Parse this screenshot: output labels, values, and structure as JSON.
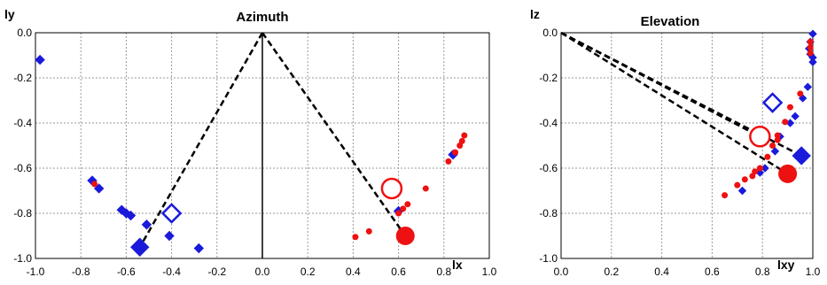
{
  "chart_data": [
    {
      "type": "scatter",
      "title": "Azimuth",
      "xlabel": "lx",
      "ylabel": "ly",
      "xlim": [
        -1.0,
        1.0
      ],
      "ylim": [
        -1.0,
        0.0
      ],
      "xticks": [
        "-1.0",
        "-0.8",
        "-0.6",
        "-0.4",
        "-0.2",
        "0.0",
        "0.2",
        "0.4",
        "0.6",
        "0.8",
        "1.0"
      ],
      "yticks": [
        "0.0",
        "-0.2",
        "-0.4",
        "-0.6",
        "-0.8",
        "-1.0"
      ],
      "grid": true,
      "colors": {
        "blue": "#1a1adb",
        "red": "#ee1111"
      },
      "lines": [
        [
          [
            0.0,
            0.0
          ],
          [
            -0.54,
            -0.95
          ]
        ],
        [
          [
            0.0,
            0.0
          ],
          [
            0.63,
            -0.9
          ]
        ]
      ],
      "series": [
        {
          "marker": "diamond",
          "color": "blue",
          "fill": "filled",
          "points": [
            [
              -0.98,
              -0.12,
              5
            ],
            [
              -0.75,
              -0.655,
              5
            ],
            [
              -0.72,
              -0.69,
              5
            ],
            [
              -0.62,
              -0.785,
              5
            ],
            [
              -0.6,
              -0.8,
              5
            ],
            [
              -0.58,
              -0.81,
              5
            ],
            [
              -0.51,
              -0.85,
              5
            ],
            [
              -0.41,
              -0.9,
              5
            ],
            [
              -0.28,
              -0.955,
              5
            ],
            [
              -0.54,
              -0.95,
              10
            ],
            [
              0.6,
              -0.79,
              5
            ],
            [
              0.84,
              -0.54,
              5
            ]
          ]
        },
        {
          "marker": "diamond",
          "color": "blue",
          "fill": "open",
          "points": [
            [
              -0.4,
              -0.8,
              10
            ]
          ]
        },
        {
          "marker": "circle",
          "color": "red",
          "fill": "filled",
          "points": [
            [
              -0.74,
              -0.67,
              3
            ],
            [
              0.41,
              -0.905,
              3
            ],
            [
              0.47,
              -0.88,
              3
            ],
            [
              0.6,
              -0.8,
              3
            ],
            [
              0.62,
              -0.78,
              3
            ],
            [
              0.64,
              -0.76,
              3
            ],
            [
              0.72,
              -0.69,
              3
            ],
            [
              0.82,
              -0.57,
              3
            ],
            [
              0.85,
              -0.53,
              3
            ],
            [
              0.87,
              -0.5,
              3
            ],
            [
              0.88,
              -0.48,
              3
            ],
            [
              0.89,
              -0.455,
              3
            ],
            [
              0.63,
              -0.9,
              10
            ]
          ]
        },
        {
          "marker": "circle",
          "color": "red",
          "fill": "open",
          "points": [
            [
              0.57,
              -0.69,
              11
            ]
          ]
        }
      ]
    },
    {
      "type": "scatter",
      "title": "Elevation",
      "xlabel": "lxy",
      "ylabel": "lz",
      "xlim": [
        0.0,
        1.0
      ],
      "ylim": [
        -1.0,
        0.0
      ],
      "xticks": [
        "0.0",
        "0.2",
        "0.4",
        "0.6",
        "0.8",
        "1.0"
      ],
      "yticks": [
        "0.0",
        "-0.2",
        "-0.4",
        "-0.6",
        "-0.8",
        "-1.0"
      ],
      "grid": true,
      "colors": {
        "blue": "#1a1adb",
        "red": "#ee1111"
      },
      "lines": [
        [
          [
            0.0,
            0.0
          ],
          [
            0.955,
            -0.545
          ]
        ],
        [
          [
            0.0,
            0.0
          ],
          [
            0.9,
            -0.625
          ]
        ],
        [
          [
            0.0,
            0.0
          ],
          [
            0.79,
            -0.46
          ]
        ]
      ],
      "series": [
        {
          "marker": "diamond",
          "color": "blue",
          "fill": "filled",
          "points": [
            [
              1.0,
              -0.005,
              4
            ],
            [
              0.99,
              -0.04,
              4
            ],
            [
              0.985,
              -0.07,
              4
            ],
            [
              0.99,
              -0.095,
              4
            ],
            [
              1.0,
              -0.11,
              4
            ],
            [
              1.0,
              -0.13,
              4
            ],
            [
              0.98,
              -0.24,
              4
            ],
            [
              0.96,
              -0.29,
              4
            ],
            [
              0.93,
              -0.37,
              4
            ],
            [
              0.91,
              -0.4,
              4
            ],
            [
              0.87,
              -0.46,
              4
            ],
            [
              0.85,
              -0.525,
              4
            ],
            [
              0.81,
              -0.6,
              4
            ],
            [
              0.79,
              -0.62,
              4
            ],
            [
              0.72,
              -0.7,
              4
            ],
            [
              0.955,
              -0.545,
              10
            ]
          ]
        },
        {
          "marker": "diamond",
          "color": "blue",
          "fill": "open",
          "points": [
            [
              0.84,
              -0.31,
              10
            ]
          ]
        },
        {
          "marker": "circle",
          "color": "red",
          "fill": "filled",
          "points": [
            [
              0.99,
              -0.04,
              3
            ],
            [
              0.99,
              -0.065,
              3
            ],
            [
              0.99,
              -0.09,
              3
            ],
            [
              0.95,
              -0.27,
              3
            ],
            [
              0.91,
              -0.33,
              3
            ],
            [
              0.89,
              -0.395,
              3
            ],
            [
              0.86,
              -0.455,
              3
            ],
            [
              0.86,
              -0.475,
              3
            ],
            [
              0.84,
              -0.5,
              3
            ],
            [
              0.82,
              -0.55,
              3
            ],
            [
              0.79,
              -0.6,
              3
            ],
            [
              0.77,
              -0.615,
              3
            ],
            [
              0.76,
              -0.635,
              3
            ],
            [
              0.73,
              -0.65,
              3
            ],
            [
              0.7,
              -0.675,
              3
            ],
            [
              0.65,
              -0.72,
              3
            ],
            [
              0.9,
              -0.625,
              10
            ]
          ]
        },
        {
          "marker": "circle",
          "color": "red",
          "fill": "open",
          "points": [
            [
              0.79,
              -0.46,
              11
            ]
          ]
        }
      ]
    }
  ]
}
